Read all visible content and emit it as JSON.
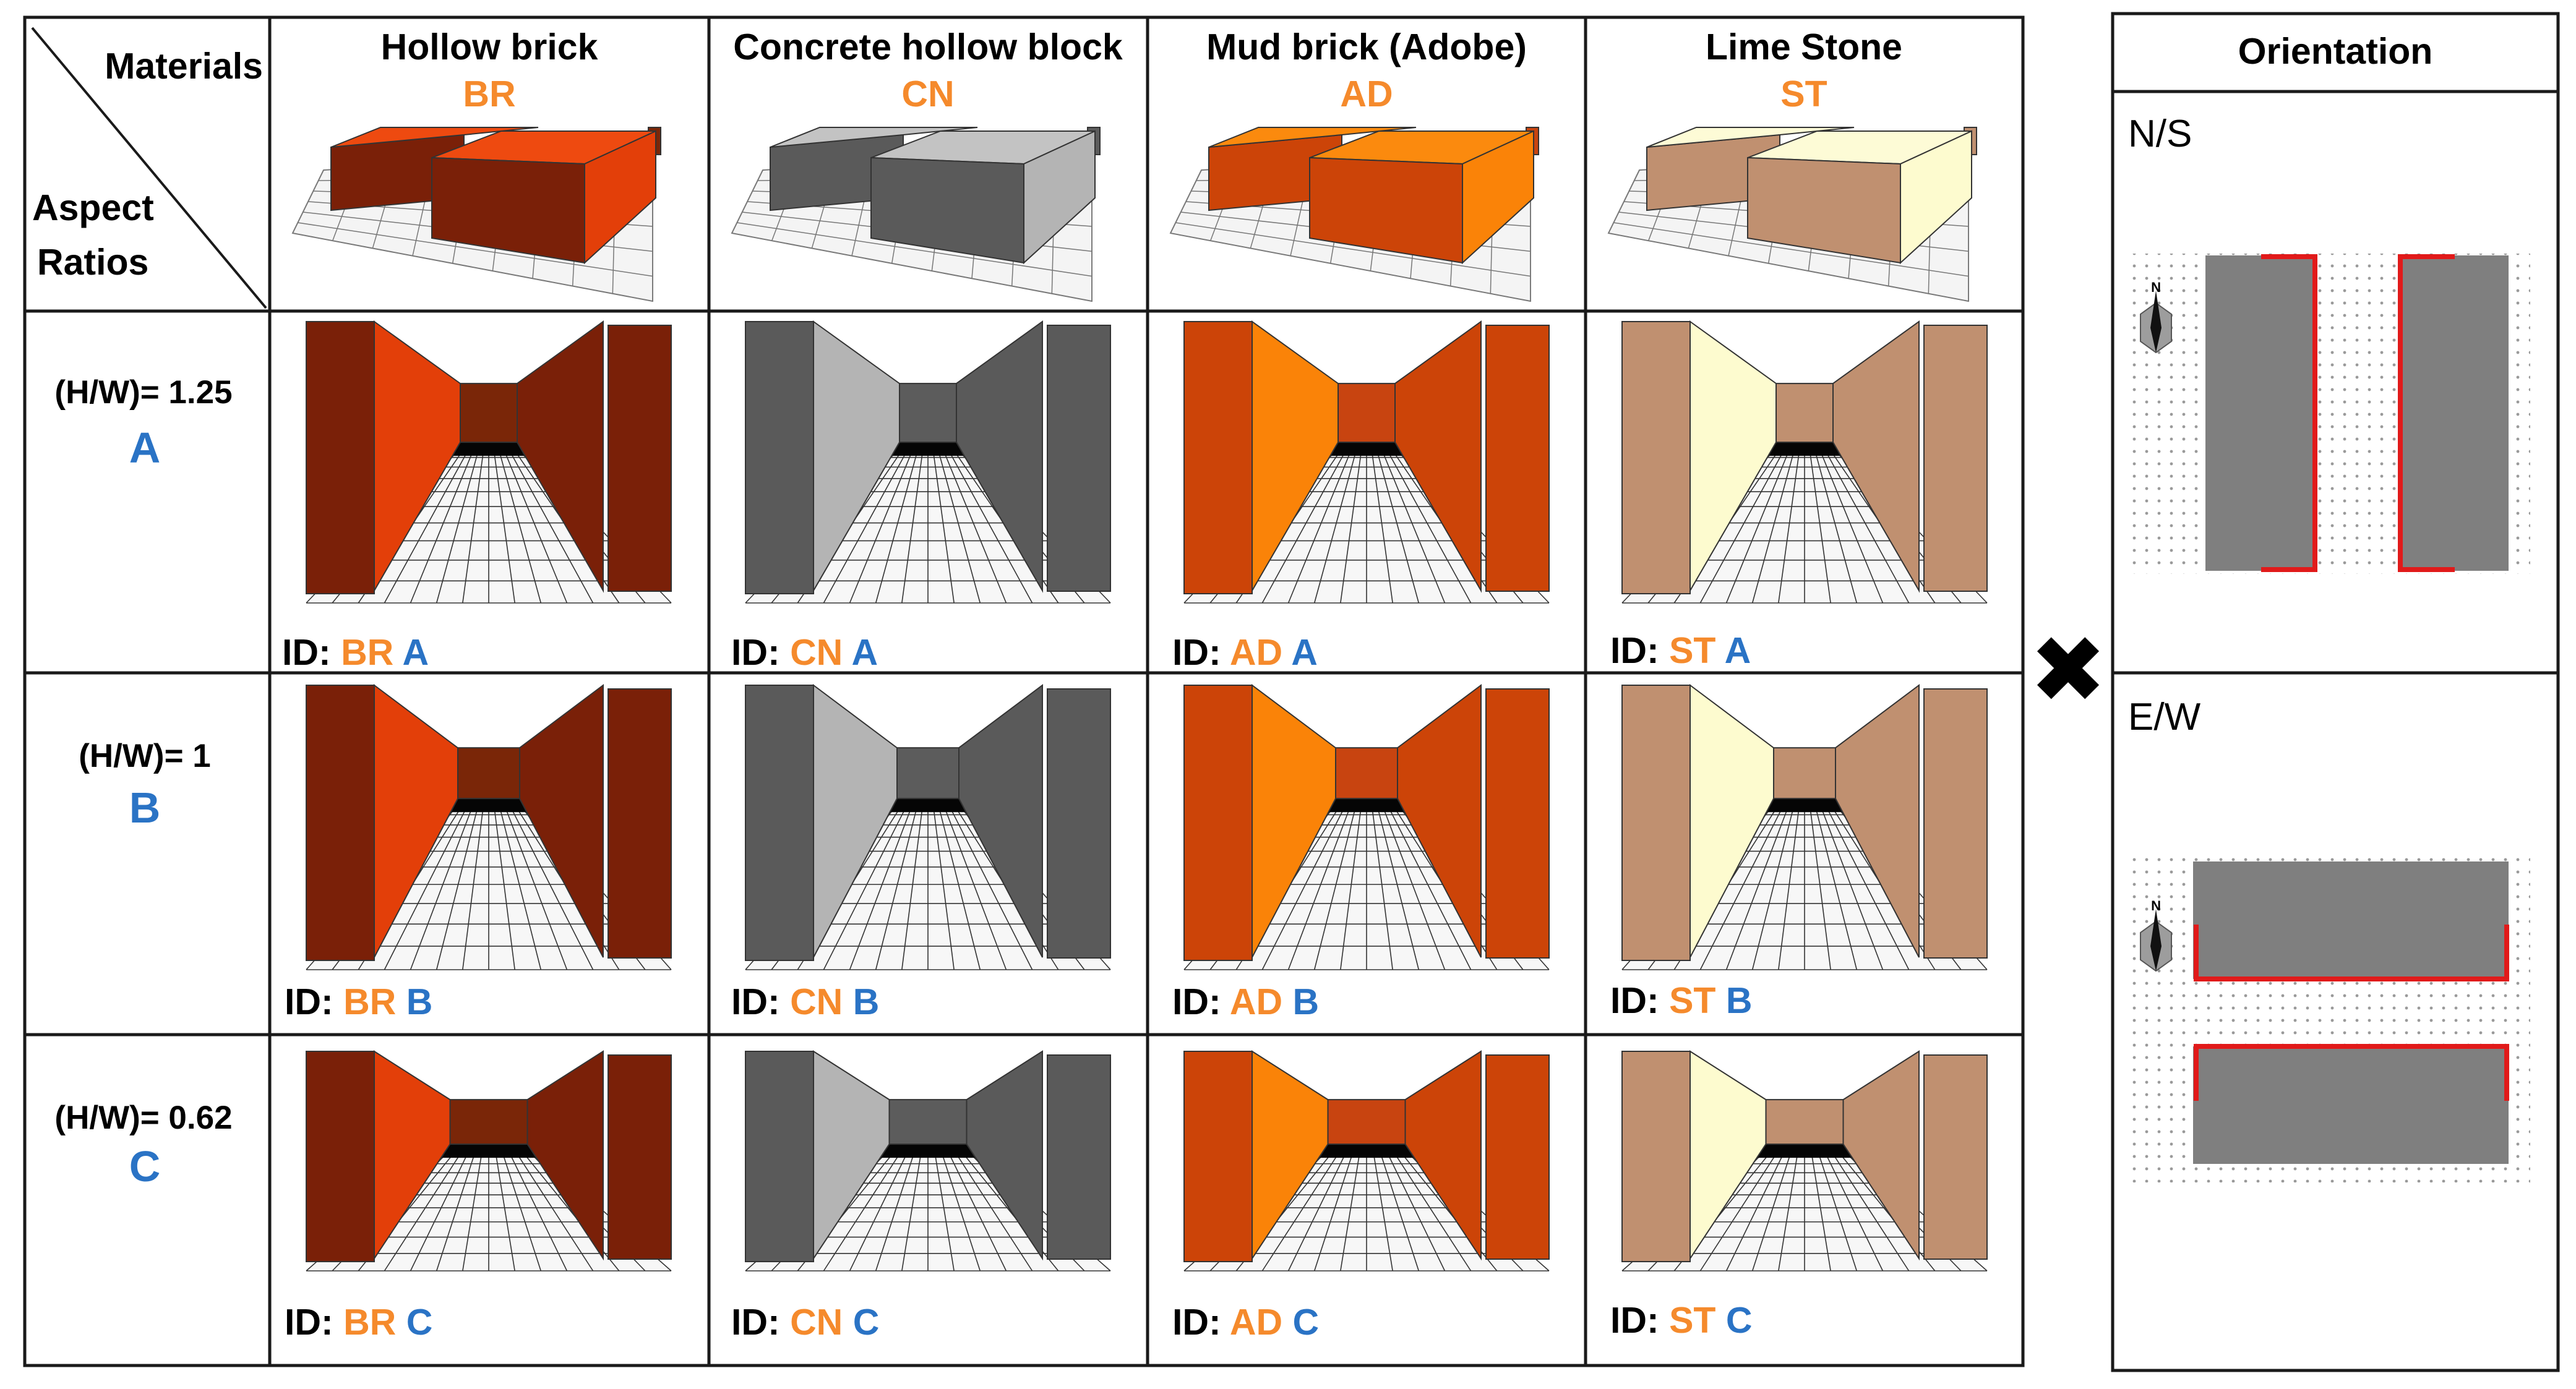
{
  "corner": {
    "materials": "Materials",
    "aspect_line1": "Aspect",
    "aspect_line2": "Ratios"
  },
  "id_prefix": "ID:",
  "materials": [
    {
      "name": "Hollow brick",
      "code": "BR",
      "colors": {
        "back": "#7a2608",
        "left": "#e33f09",
        "right": "#7a2008",
        "top": "#ee4a10"
      }
    },
    {
      "name": "Concrete hollow block",
      "code": "CN",
      "colors": {
        "back": "#5c5c5c",
        "left": "#b4b4b4",
        "right": "#5a5a5a",
        "top": "#c3c3c3"
      }
    },
    {
      "name": "Mud brick (Adobe)",
      "code": "AD",
      "colors": {
        "back": "#c84410",
        "left": "#fa8308",
        "right": "#cc4408",
        "top": "#fb8a0e"
      }
    },
    {
      "name": "Lime Stone",
      "code": "ST",
      "colors": {
        "back": "#c09070",
        "left": "#fdfbcf",
        "right": "#c09070",
        "top": "#fdfbd6"
      }
    }
  ],
  "aspect_ratios": [
    {
      "label": "(H/W)= 1.25",
      "letter": "A"
    },
    {
      "label": "(H/W)= 1",
      "letter": "B"
    },
    {
      "label": "(H/W)= 0.62",
      "letter": "C"
    }
  ],
  "orientation": {
    "header": "Orientation",
    "options": [
      {
        "label": "N/S"
      },
      {
        "label": "E/W"
      }
    ],
    "north_label": "N"
  },
  "operator_symbol": "✖",
  "colors": {
    "code_orange": "#f58a2c",
    "letter_blue": "#2a73c5",
    "grid": "#222222",
    "highlight": "#e11a1a",
    "block_gray": "#7f7f7f"
  }
}
